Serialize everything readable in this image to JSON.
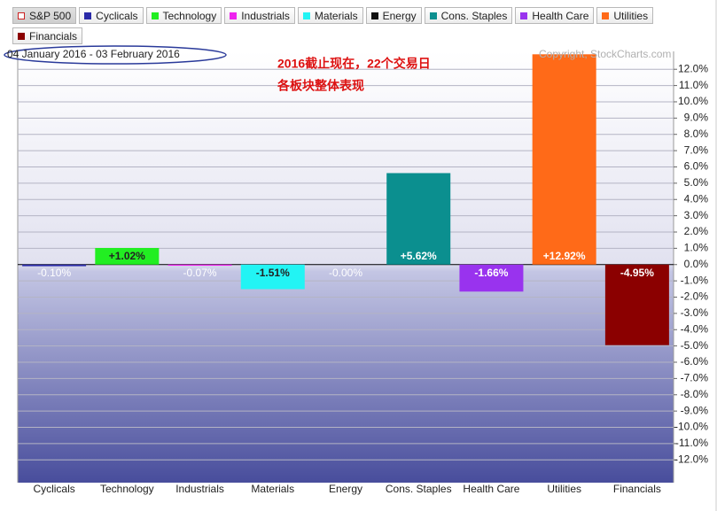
{
  "chart_data": {
    "type": "bar",
    "benchmark": "S&P 500",
    "benchmark_color": "#cc2222",
    "date_range": "04 January 2016 - 03 February 2016",
    "annotation": [
      "2016截止现在，22个交易日",
      "各板块整体表现"
    ],
    "copyright": "Copyright, StockCharts.com",
    "categories": [
      "Cyclicals",
      "Technology",
      "Industrials",
      "Materials",
      "Energy",
      "Cons. Staples",
      "Health Care",
      "Utilities",
      "Financials"
    ],
    "values": [
      -0.1,
      1.02,
      -0.07,
      -1.51,
      0,
      5.62,
      -1.66,
      12.92,
      -4.95
    ],
    "value_labels": [
      "-0.10%",
      "+1.02%",
      "-0.07%",
      "-1.51%",
      "-0.00%",
      "+5.62%",
      "-1.66%",
      "+12.92%",
      "-4.95%"
    ],
    "colors": [
      "#2a2aa8",
      "#22ee22",
      "#ee22ee",
      "#22f4f4",
      "#111111",
      "#0b8f8f",
      "#9933ee",
      "#ff6a18",
      "#8b0000"
    ],
    "ylim": [
      -13.4,
      13.1
    ],
    "yticks": [
      {
        "value": 12,
        "label": "12.0%"
      },
      {
        "value": 11,
        "label": "11.0%"
      },
      {
        "value": 10,
        "label": "10.0%"
      },
      {
        "value": 9,
        "label": "9.0%"
      },
      {
        "value": 8,
        "label": "8.0%"
      },
      {
        "value": 7,
        "label": "7.0%"
      },
      {
        "value": 6,
        "label": "6.0%"
      },
      {
        "value": 5,
        "label": "5.0%"
      },
      {
        "value": 4,
        "label": "4.0%"
      },
      {
        "value": 3,
        "label": "3.0%"
      },
      {
        "value": 2,
        "label": "2.0%"
      },
      {
        "value": 1,
        "label": "1.0%"
      },
      {
        "value": 0,
        "label": "0.0%"
      },
      {
        "value": -1,
        "label": "-1.0%"
      },
      {
        "value": -2,
        "label": "-2.0%"
      },
      {
        "value": -3,
        "label": "-3.0%"
      },
      {
        "value": -4,
        "label": "-4.0%"
      },
      {
        "value": -5,
        "label": "-5.0%"
      },
      {
        "value": -6,
        "label": "-6.0%"
      },
      {
        "value": -7,
        "label": "-7.0%"
      },
      {
        "value": -8,
        "label": "-8.0%"
      },
      {
        "value": -9,
        "label": "-9.0%"
      },
      {
        "value": -10,
        "label": "-10.0%"
      },
      {
        "value": -11,
        "label": "-11.0%"
      },
      {
        "value": -12,
        "label": "-12.0%"
      }
    ],
    "grid": true
  }
}
